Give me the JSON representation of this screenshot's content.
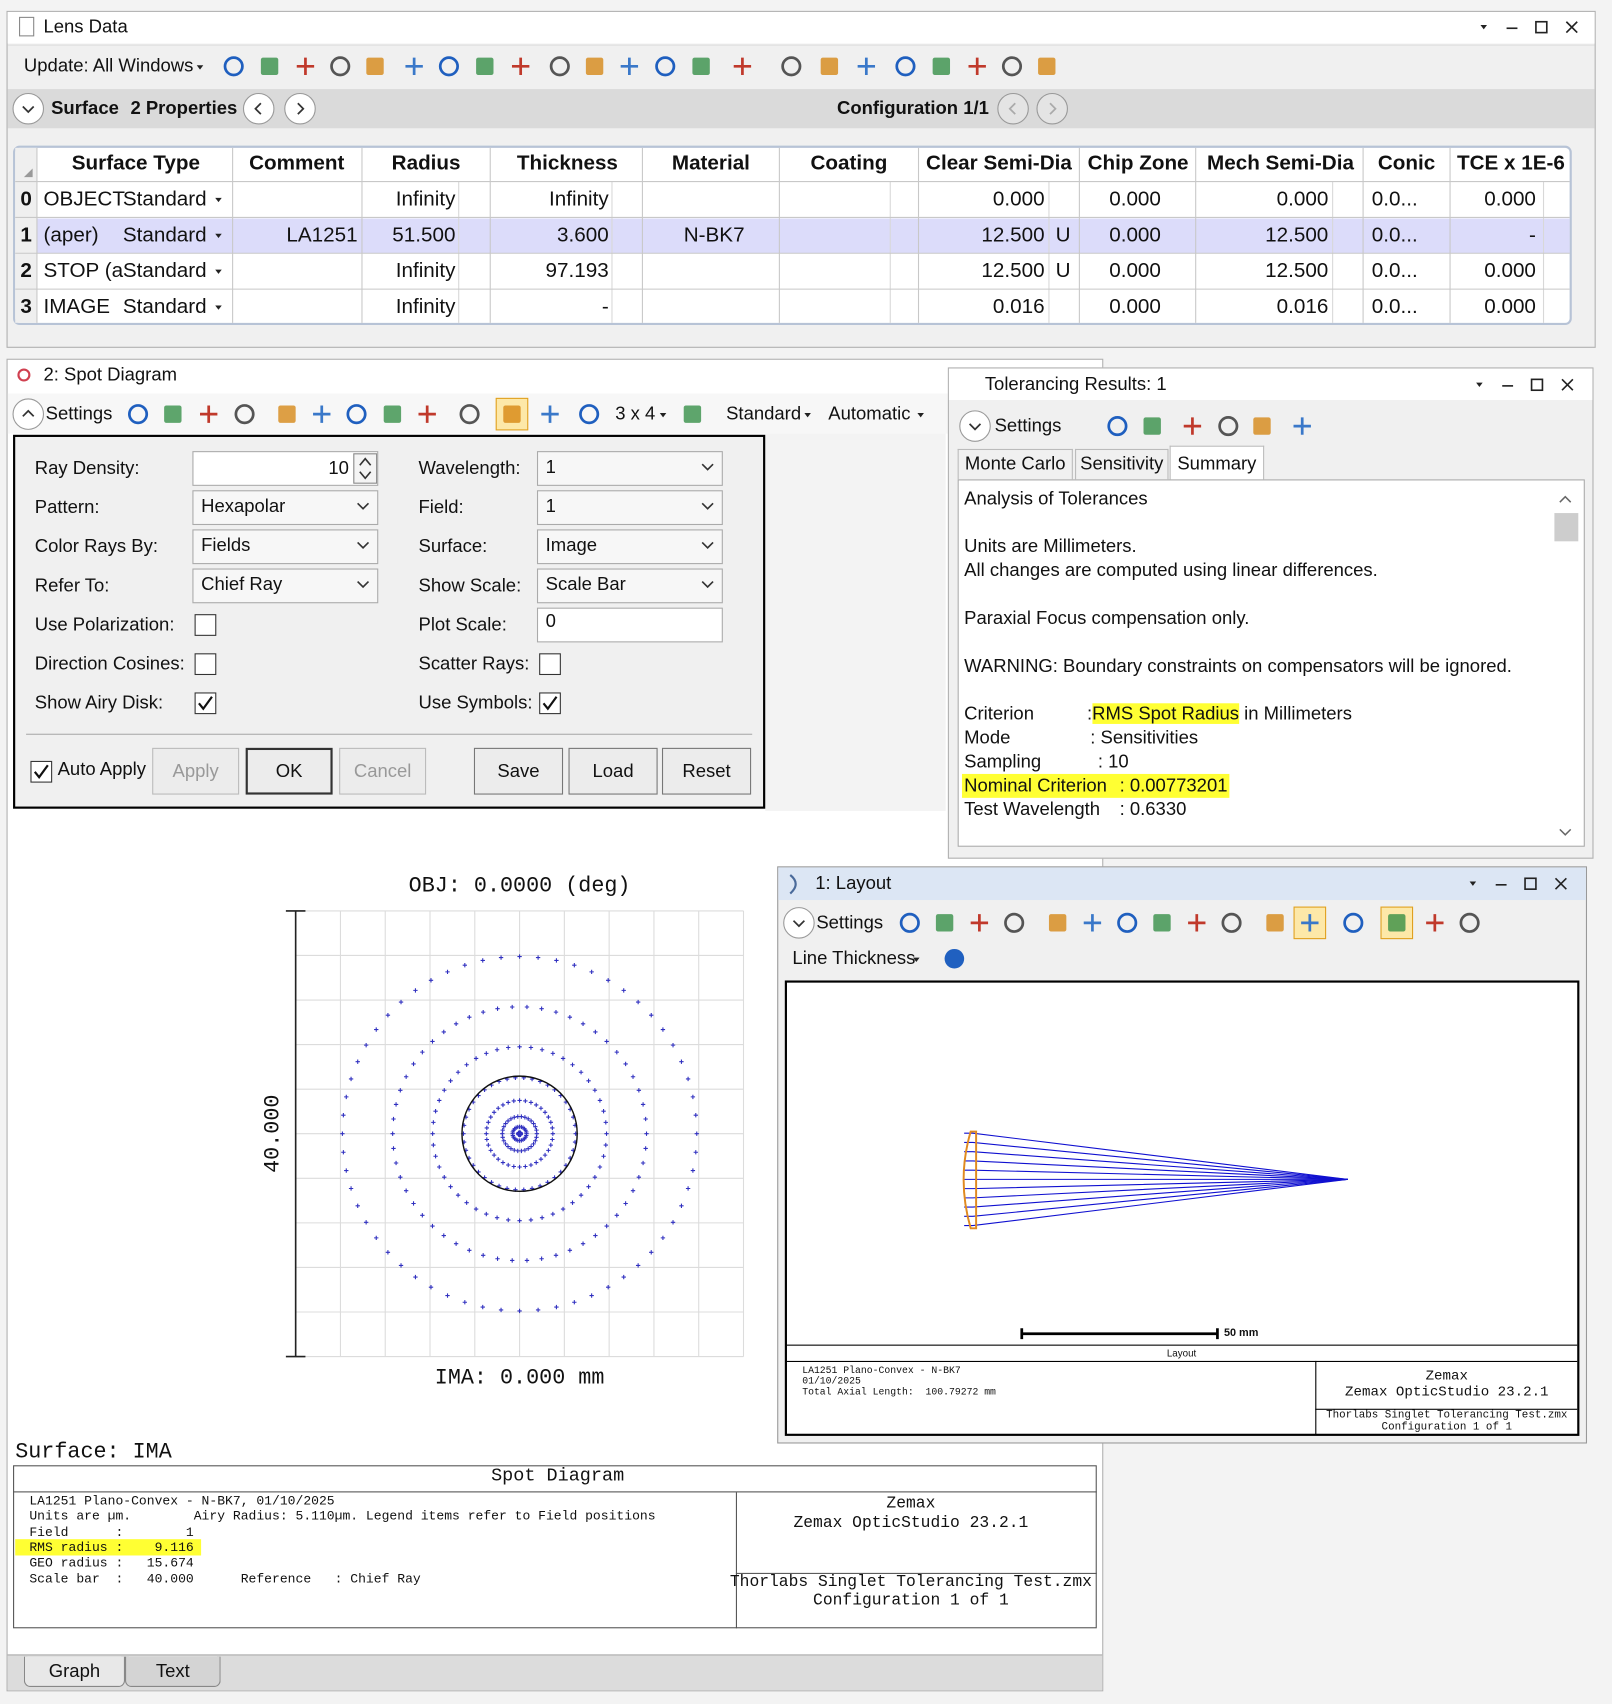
{
  "lens_data": {
    "title": "Lens Data",
    "update_button": "Update: All Windows",
    "surface_button": "Surface",
    "properties_button": "2 Properties",
    "configuration": "Configuration 1/1",
    "columns": [
      "Surface Type",
      "Comment",
      "Radius",
      "Thickness",
      "Material",
      "Coating",
      "Clear Semi-Dia",
      "Chip Zone",
      "Mech Semi-Dia",
      "Conic",
      "TCE x 1E-6"
    ],
    "rows": [
      {
        "index": "0",
        "name": "OBJECT",
        "type": "Standard",
        "radius": "Infinity",
        "thickness": "Infinity",
        "clear_semi_dia": "0.000",
        "chip_zone": "0.000",
        "mech_semi_dia": "0.000",
        "conic": "0.0...",
        "tce": "0.000"
      },
      {
        "index": "1",
        "name": "(aper)",
        "type": "Standard",
        "comment": "LA1251",
        "radius": "51.500",
        "thickness": "3.600",
        "material": "N-BK7",
        "clear_semi_dia": "12.500",
        "clear_solve": "U",
        "chip_zone": "0.000",
        "mech_semi_dia": "12.500",
        "conic": "0.0...",
        "tce": "-",
        "selected": true
      },
      {
        "index": "2",
        "name": "STOP (a",
        "type": "Standard",
        "radius": "Infinity",
        "thickness": "97.193",
        "clear_semi_dia": "12.500",
        "clear_solve": "U",
        "chip_zone": "0.000",
        "mech_semi_dia": "12.500",
        "conic": "0.0...",
        "tce": "0.000"
      },
      {
        "index": "3",
        "name": "IMAGE",
        "type": "Standard",
        "radius": "Infinity",
        "thickness": "-",
        "clear_semi_dia": "0.016",
        "chip_zone": "0.000",
        "mech_semi_dia": "0.016",
        "conic": "0.0...",
        "tce": "0.000"
      }
    ]
  },
  "spot_diagram": {
    "title": "2: Spot Diagram",
    "toolbar": {
      "settings": "Settings",
      "grid": "3 x 4",
      "mode": "Standard",
      "scale": "Automatic"
    },
    "settings_left": [
      {
        "label": "Ray Density:",
        "control": "spin",
        "value": "10"
      },
      {
        "label": "Pattern:",
        "control": "dropdown",
        "value": "Hexapolar"
      },
      {
        "label": "Color Rays By:",
        "control": "dropdown",
        "value": "Fields"
      },
      {
        "label": "Refer To:",
        "control": "dropdown",
        "value": "Chief Ray"
      },
      {
        "label": "Use Polarization:",
        "control": "checkbox",
        "checked": false
      },
      {
        "label": "Direction Cosines:",
        "control": "checkbox",
        "checked": false
      },
      {
        "label": "Show Airy Disk:",
        "control": "checkbox",
        "checked": true
      }
    ],
    "settings_right": [
      {
        "label": "Wavelength:",
        "control": "dropdown",
        "value": "1"
      },
      {
        "label": "Field:",
        "control": "dropdown",
        "value": "1"
      },
      {
        "label": "Surface:",
        "control": "dropdown",
        "value": "Image"
      },
      {
        "label": "Show Scale:",
        "control": "dropdown",
        "value": "Scale Bar"
      },
      {
        "label": "Plot Scale:",
        "control": "text",
        "value": "0"
      },
      {
        "label": "Scatter Rays:",
        "control": "checkbox",
        "checked": false
      },
      {
        "label": "Use Symbols:",
        "control": "checkbox",
        "checked": true
      }
    ],
    "auto_apply": {
      "label": "Auto Apply",
      "checked": true
    },
    "buttons": [
      {
        "label": "Apply",
        "enabled": false
      },
      {
        "label": "OK",
        "enabled": true
      },
      {
        "label": "Cancel",
        "enabled": false
      },
      {
        "label": "Save",
        "enabled": true
      },
      {
        "label": "Load",
        "enabled": true
      },
      {
        "label": "Reset",
        "enabled": true
      }
    ],
    "plot": {
      "title": "OBJ: 0.0000 (deg)",
      "scale_label": "40.000",
      "x_label": "IMA: 0.000 mm"
    },
    "surface": "Surface: IMA",
    "footer": {
      "title": "Spot Diagram",
      "lines": [
        {
          "text": "LA1251 Plano-Convex - N-BK7, 01/10/2025"
        },
        {
          "text": "Units are µm.        Airy Radius: 5.110µm. Legend items refer to Field positions"
        },
        {
          "text": "Field      :        1"
        },
        {
          "text": "RMS radius :    9.116",
          "highlight": true
        },
        {
          "text": "GEO radius :   15.674"
        },
        {
          "text": "Scale bar  :   40.000      Reference   : Chief Ray"
        }
      ],
      "company": "Zemax",
      "product": "Zemax OpticStudio 23.2.1",
      "file": "Thorlabs Singlet Tolerancing Test.zmx",
      "configuration": "Configuration 1 of 1"
    },
    "tabs": [
      "Graph",
      "Text"
    ],
    "active_tab": 0
  },
  "tolerancing": {
    "title": "Tolerancing Results: 1",
    "settings": "Settings",
    "tabs": [
      "Monte Carlo",
      "Sensitivity",
      "Summary"
    ],
    "active_tab": 2,
    "paragraphs": [
      [
        "Analysis of Tolerances"
      ],
      [
        "Units are Millimeters.",
        "All changes are computed using linear differences."
      ],
      [
        "Paraxial Focus compensation only."
      ],
      [
        "WARNING: Boundary constraints on compensators will be ignored."
      ]
    ],
    "criteria": [
      {
        "key": "Criterion",
        "value": [
          {
            "text": ":"
          },
          {
            "text": "RMS Spot Radius",
            "highlight": true
          },
          {
            "text": " in Millimeters"
          }
        ]
      },
      {
        "key": "Mode",
        "value": [
          {
            "text": ": Sensitivities"
          }
        ]
      },
      {
        "key": "Sampling",
        "value": [
          {
            "text": ": 10"
          }
        ]
      },
      {
        "key": "Nominal Criterion",
        "value": [
          {
            "text": ": 0.00773201"
          }
        ],
        "highlight": true
      },
      {
        "key": "Test Wavelength",
        "value": [
          {
            "text": ": 0.6330"
          }
        ]
      }
    ]
  },
  "layout": {
    "title": "1: Layout",
    "settings": "Settings",
    "line_thickness": "Line Thickness",
    "scale_bar": "50 mm",
    "plot_label": "Layout",
    "footer_left": [
      "LA1251 Plano-Convex - N-BK7",
      "01/10/2025",
      "Total Axial Length:  100.79272 mm"
    ],
    "company": "Zemax",
    "product": "Zemax OpticStudio 23.2.1",
    "file": "Thorlabs Singlet Tolerancing Test.zmx",
    "configuration": "Configuration 1 of 1"
  }
}
